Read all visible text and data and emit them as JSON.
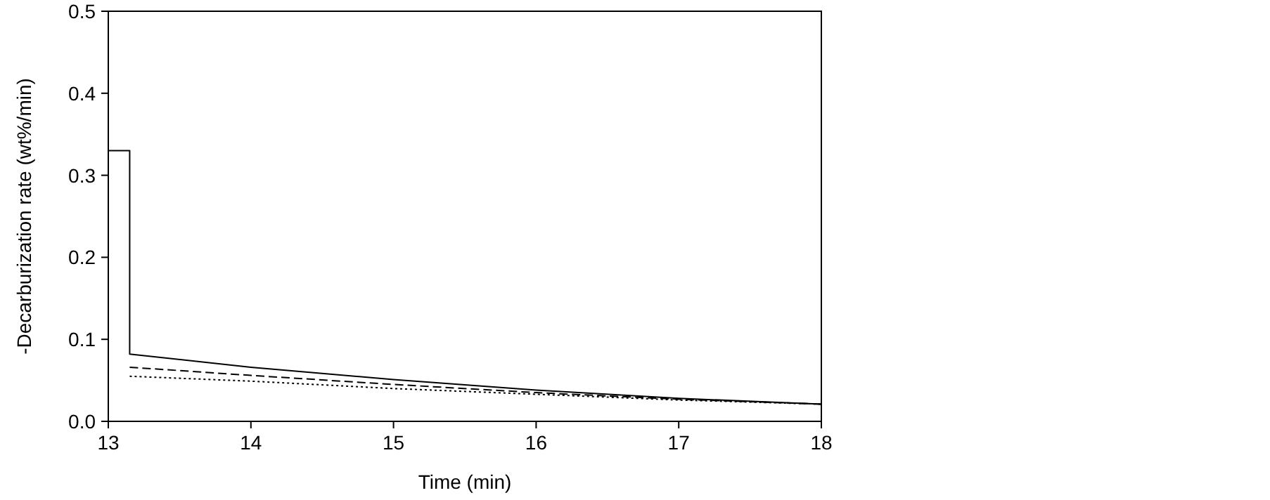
{
  "chart_data": {
    "type": "line",
    "xlabel": "Time (min)",
    "ylabel": "-Decarburization rate (wt%/min)",
    "xlim": [
      13,
      18
    ],
    "xticks": [
      13,
      14,
      15,
      16,
      17,
      18
    ],
    "ylim": [
      0,
      0.5
    ],
    "yticks": [
      {
        "value": 0,
        "label": "0.0"
      },
      {
        "value": 0.1,
        "label": "0.1"
      },
      {
        "value": 0.2,
        "label": "0.2"
      },
      {
        "value": 0.3,
        "label": "0.3"
      },
      {
        "value": 0.4,
        "label": "0.4"
      },
      {
        "value": 0.5,
        "label": "0.5"
      }
    ],
    "grid": false,
    "marker": "none",
    "series": [
      {
        "color": "#000000",
        "line_style": "solid",
        "x": [
          13,
          13.15,
          13.15,
          14,
          15,
          16,
          17,
          18
        ],
        "values": [
          0.33,
          0.33,
          0.082,
          0.066,
          0.051,
          0.038,
          0.028,
          0.021
        ]
      },
      {
        "color": "#000000",
        "line_style": "dashed",
        "x": [
          13.15,
          14,
          15,
          16,
          17,
          18
        ],
        "values": [
          0.066,
          0.056,
          0.045,
          0.035,
          0.027,
          0.021
        ]
      },
      {
        "color": "#000000",
        "line_style": "dotted",
        "x": [
          13.15,
          14,
          15,
          16,
          17,
          18
        ],
        "values": [
          0.055,
          0.049,
          0.04,
          0.033,
          0.026,
          0.021
        ]
      }
    ]
  }
}
